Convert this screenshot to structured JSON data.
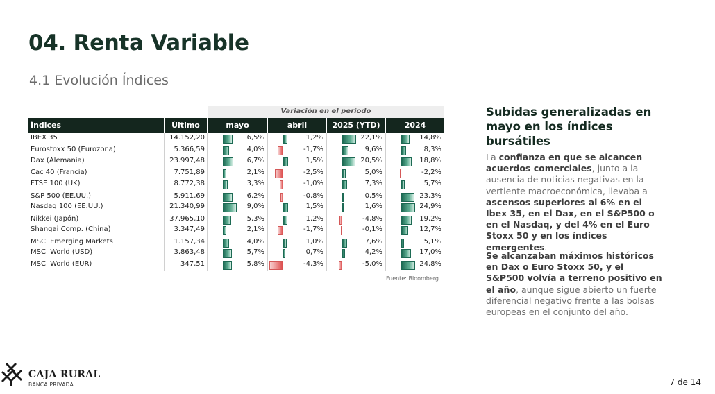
{
  "page": {
    "title": "04. Renta Variable",
    "subtitle": "4.1 Evolución Índices",
    "page_number": "7 de 14"
  },
  "table": {
    "group_header": "Variación en el período",
    "columns": [
      "Índices",
      "Último",
      "mayo",
      "abril",
      "2025 (YTD)",
      "2024"
    ],
    "source": "Fuente: Bloomberg",
    "rows": [
      {
        "name": "IBEX 35",
        "last": "14.152,20",
        "values": [
          "6,5%",
          "1,2%",
          "22,1%",
          "14,8%"
        ],
        "nums": [
          6.5,
          1.2,
          22.1,
          14.8
        ]
      },
      {
        "name": "Eurostoxx 50 (Eurozona)",
        "last": "5.366,59",
        "values": [
          "4,0%",
          "-1,7%",
          "9,6%",
          "8,3%"
        ],
        "nums": [
          4.0,
          -1.7,
          9.6,
          8.3
        ]
      },
      {
        "name": "Dax (Alemania)",
        "last": "23.997,48",
        "values": [
          "6,7%",
          "1,5%",
          "20,5%",
          "18,8%"
        ],
        "nums": [
          6.7,
          1.5,
          20.5,
          18.8
        ]
      },
      {
        "name": "Cac 40 (Francia)",
        "last": "7.751,89",
        "values": [
          "2,1%",
          "-2,5%",
          "5,0%",
          "-2,2%"
        ],
        "nums": [
          2.1,
          -2.5,
          5.0,
          -2.2
        ]
      },
      {
        "name": "FTSE 100 (UK)",
        "last": "8.772,38",
        "values": [
          "3,3%",
          "-1,0%",
          "7,3%",
          "5,7%"
        ],
        "nums": [
          3.3,
          -1.0,
          7.3,
          5.7
        ]
      },
      {
        "name": "S&P 500 (EE.UU.)",
        "last": "5.911,69",
        "values": [
          "6,2%",
          "-0,8%",
          "0,5%",
          "23,3%"
        ],
        "nums": [
          6.2,
          -0.8,
          0.5,
          23.3
        ],
        "sep": true
      },
      {
        "name": "Nasdaq 100 (EE.UU.)",
        "last": "21.340,99",
        "values": [
          "9,0%",
          "1,5%",
          "1,6%",
          "24,9%"
        ],
        "nums": [
          9.0,
          1.5,
          1.6,
          24.9
        ]
      },
      {
        "name": "Nikkei (Japón)",
        "last": "37.965,10",
        "values": [
          "5,3%",
          "1,2%",
          "-4,8%",
          "19,2%"
        ],
        "nums": [
          5.3,
          1.2,
          -4.8,
          19.2
        ],
        "sep": true
      },
      {
        "name": "Shangai Comp. (China)",
        "last": "3.347,49",
        "values": [
          "2,1%",
          "-1,7%",
          "-0,1%",
          "12,7%"
        ],
        "nums": [
          2.1,
          -1.7,
          -0.1,
          12.7
        ]
      },
      {
        "name": "MSCI Emerging Markets",
        "last": "1.157,34",
        "values": [
          "4,0%",
          "1,0%",
          "7,6%",
          "5,1%"
        ],
        "nums": [
          4.0,
          1.0,
          7.6,
          5.1
        ],
        "sep": true
      },
      {
        "name": "MSCI World (USD)",
        "last": "3.863,48",
        "values": [
          "5,7%",
          "0,7%",
          "4,2%",
          "17,0%"
        ],
        "nums": [
          5.7,
          0.7,
          4.2,
          17.0
        ]
      },
      {
        "name": "MSCI World (EUR)",
        "last": "347,51",
        "values": [
          "5,8%",
          "-4,3%",
          "-5,0%",
          "24,8%"
        ],
        "nums": [
          5.8,
          -4.3,
          -5.0,
          24.8
        ]
      }
    ]
  },
  "side": {
    "heading": "Subidas generalizadas en mayo en los índices bursátiles",
    "p1": [
      {
        "t": "La ",
        "b": false
      },
      {
        "t": "confianza en que se alcancen acuerdos comerciales",
        "b": true
      },
      {
        "t": ", junto a la ausencia de noticias negativas en la vertiente macroeconómica, llevaba a ",
        "b": false
      },
      {
        "t": "ascensos superiores al 6% en el Ibex 35, en el Dax, en el S&P500 o en el Nasdaq, y del 4% en el Euro Stoxx 50 y en los índices emergentes",
        "b": true
      },
      {
        "t": ".",
        "b": false
      }
    ],
    "p2": [
      {
        "t": "Se alcanzaban máximos históricos en Dax o Euro Stoxx 50, y el S&P500 volvía a terreno positivo en el año",
        "b": true
      },
      {
        "t": ", aunque sigue abierto un fuerte diferencial negativo frente a las bolsas europeas en el conjunto del año.",
        "b": false
      }
    ]
  },
  "footer": {
    "logo_name": "CAJA RURAL",
    "logo_sub": "BANCA PRIVADA"
  },
  "colors": {
    "dark_green": "#14261e",
    "positive_bar": "#1e6c55",
    "negative_bar": "#dc4d4d"
  }
}
